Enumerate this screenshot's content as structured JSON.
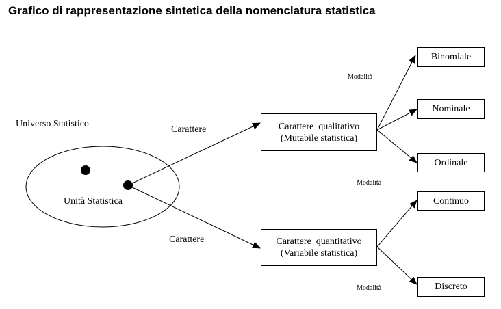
{
  "title": "Grafico di rappresentazione sintetica della nomenclatura statistica",
  "universe_label": "Universo Statistico",
  "unit_label": "Unità Statistica",
  "edge_labels": {
    "carattere_top": "Carattere",
    "carattere_bottom": "Carattere",
    "modalita_1": "Modalità",
    "modalita_2": "Modalità",
    "modalita_3": "Modalità"
  },
  "qualitative": {
    "line1": "Carattere  qualitativo",
    "line2": "(Mutabile statistica)"
  },
  "quantitative": {
    "line1": "Carattere  quantitativo",
    "line2": "(Variabile statistica)"
  },
  "qualitative_types": [
    "Binomiale",
    "Nominale",
    "Ordinale"
  ],
  "quantitative_types": [
    "Continuo",
    "Discreto"
  ]
}
